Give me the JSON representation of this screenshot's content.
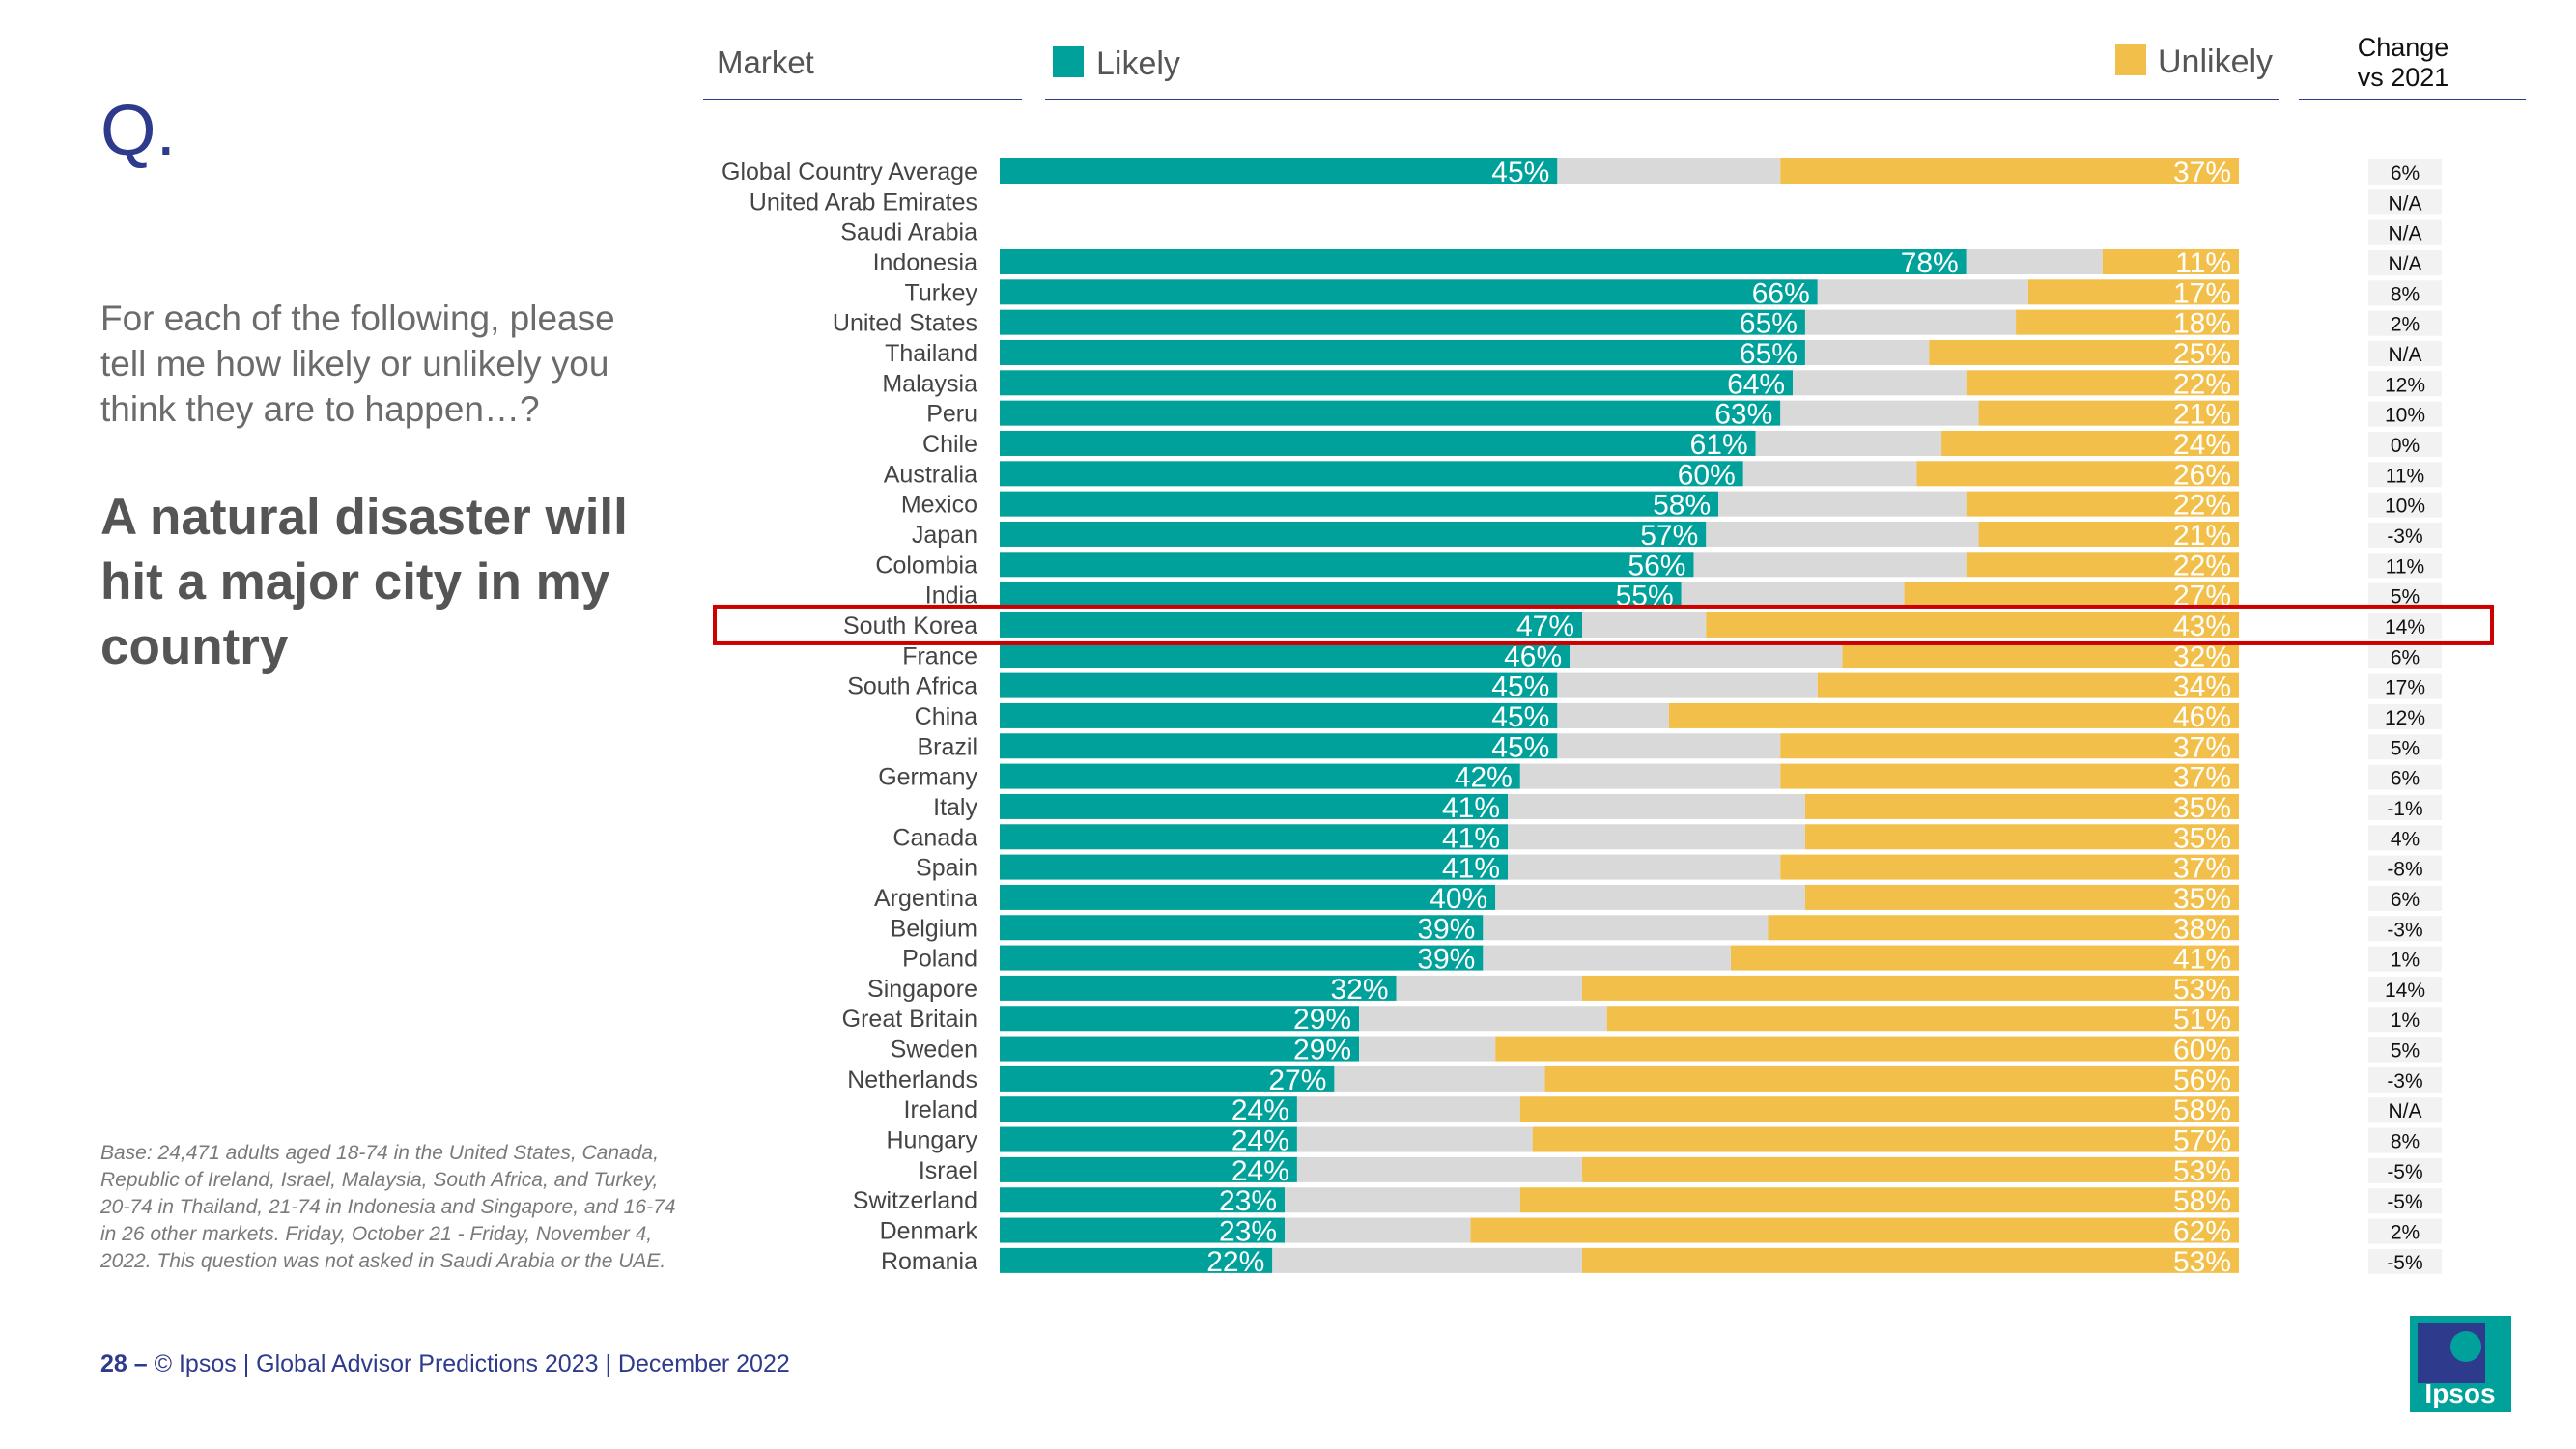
{
  "header": {
    "q_mark": "Q.",
    "question": "For each of the following, please tell me how likely or unlikely you think they are to happen…?",
    "headline": "A natural disaster will hit a major city in my country"
  },
  "base_note": "Base: 24,471 adults aged 18-74 in the United States, Canada, Republic of Ireland, Israel, Malaysia, South Africa, and Turkey, 20-74 in Thailand, 21-74 in Indonesia and Singapore, and 16-74 in 26 other markets. Friday, October 21 - Friday, November 4, 2022. This question was not asked in Saudi Arabia or the UAE.",
  "footer": {
    "page": "28 –",
    "text": "© Ipsos | Global Advisor Predictions 2023 | December 2022"
  },
  "logo_text": "Ipsos",
  "colors": {
    "likely": "#00a19a",
    "unlikely": "#f2c04a",
    "neutral": "#d9d9d9",
    "highlight": "#cc0000",
    "navy": "#2e3a8c"
  },
  "chart_data": {
    "type": "bar",
    "orientation": "horizontal-stacked",
    "column_headers": {
      "market": "Market",
      "change_line1": "Change",
      "change_line2": "vs 2021"
    },
    "legend": [
      {
        "name": "Likely",
        "color": "#00a19a"
      },
      {
        "name": "Unlikely",
        "color": "#f2c04a"
      }
    ],
    "highlighted": "South Korea",
    "categories": [
      "Global Country Average",
      "United Arab Emirates",
      "Saudi Arabia",
      "Indonesia",
      "Turkey",
      "United States",
      "Thailand",
      "Malaysia",
      "Peru",
      "Chile",
      "Australia",
      "Mexico",
      "Japan",
      "Colombia",
      "India",
      "South Korea",
      "France",
      "South Africa",
      "China",
      "Brazil",
      "Germany",
      "Italy",
      "Canada",
      "Spain",
      "Argentina",
      "Belgium",
      "Poland",
      "Singapore",
      "Great Britain",
      "Sweden",
      "Netherlands",
      "Ireland",
      "Hungary",
      "Israel",
      "Switzerland",
      "Denmark",
      "Romania"
    ],
    "series": [
      {
        "name": "Likely",
        "values": [
          45,
          null,
          null,
          78,
          66,
          65,
          65,
          64,
          63,
          61,
          60,
          58,
          57,
          56,
          55,
          47,
          46,
          45,
          45,
          45,
          42,
          41,
          41,
          41,
          40,
          39,
          39,
          32,
          29,
          29,
          27,
          24,
          24,
          24,
          23,
          23,
          22
        ]
      },
      {
        "name": "Unlikely",
        "values": [
          37,
          null,
          null,
          11,
          17,
          18,
          25,
          22,
          21,
          24,
          26,
          22,
          21,
          22,
          27,
          43,
          32,
          34,
          46,
          37,
          37,
          35,
          35,
          37,
          35,
          38,
          41,
          53,
          51,
          60,
          56,
          58,
          57,
          53,
          58,
          62,
          53
        ]
      }
    ],
    "value_labels": {
      "likely": [
        "45%",
        "",
        "",
        "78%",
        "66%",
        "65%",
        "65%",
        "64%",
        "63%",
        "61%",
        "60%",
        "58%",
        "57%",
        "56%",
        "55%",
        "47%",
        "46%",
        "45%",
        "45%",
        "45%",
        "42%",
        "41%",
        "41%",
        "41%",
        "40%",
        "39%",
        "39%",
        "32%",
        "29%",
        "29%",
        "27%",
        "24%",
        "24%",
        "24%",
        "23%",
        "23%",
        "22%"
      ],
      "unlikely": [
        "37%",
        "",
        "",
        "11%",
        "17%",
        "18%",
        "25%",
        "22%",
        "21%",
        "24%",
        "26%",
        "22%",
        "21%",
        "22%",
        "27%",
        "43%",
        "32%",
        "34%",
        "46%",
        "37%",
        "37%",
        "35%",
        "35%",
        "37%",
        "35%",
        "38%",
        "41%",
        "53%",
        "51%",
        "60%",
        "56%",
        "58%",
        "57%",
        "53%",
        "58%",
        "62%",
        "53%"
      ]
    },
    "change_vs_2021": [
      "6%",
      "N/A",
      "N/A",
      "N/A",
      "8%",
      "2%",
      "N/A",
      "12%",
      "10%",
      "0%",
      "11%",
      "10%",
      "-3%",
      "11%",
      "5%",
      "14%",
      "6%",
      "17%",
      "12%",
      "5%",
      "6%",
      "-1%",
      "4%",
      "-8%",
      "6%",
      "-3%",
      "1%",
      "14%",
      "1%",
      "5%",
      "-3%",
      "N/A",
      "8%",
      "-5%",
      "-5%",
      "2%",
      "-5%"
    ],
    "xlim": [
      0,
      100
    ]
  }
}
